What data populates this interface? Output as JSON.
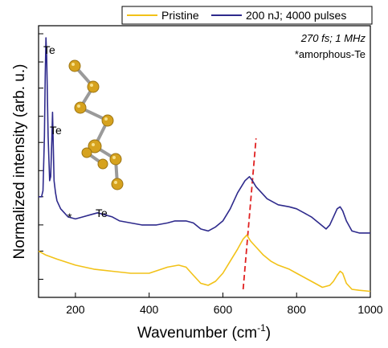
{
  "chart_data": {
    "type": "line",
    "xlabel": "Wavenumber (cm",
    "xlabel_sup": "-1",
    "xlabel_tail": ")",
    "ylabel": "Normalized intensity (arb. u.)",
    "xlim": [
      100,
      1000
    ],
    "ylim": [
      0,
      1.35
    ],
    "x_ticks": [
      200,
      400,
      600,
      800,
      1000
    ],
    "x_tick_labels": [
      "200",
      "400",
      "600",
      "800",
      "1000"
    ],
    "y_ticks": [
      0.09,
      0.23,
      0.36,
      0.5,
      0.63,
      0.77,
      0.9,
      1.04,
      1.17,
      1.31
    ],
    "y_tick_labels_shown": false,
    "legend_position": "top",
    "annotations": {
      "condition": "270 fs; 1 MHz",
      "footnote": "*amorphous-Te",
      "star": "*",
      "peak_label_1": "Te",
      "peak_label_2": "Te",
      "peak_label_3": "Te"
    },
    "guide_line": {
      "color": "#e02020",
      "style": "dashed",
      "x_start": 655,
      "y_start": 0.04,
      "x_end": 690,
      "y_end": 0.79
    },
    "series": [
      {
        "name": "Pristine",
        "color": "#f2c218",
        "x": [
          100,
          120,
          150,
          200,
          250,
          300,
          350,
          400,
          450,
          480,
          500,
          520,
          540,
          560,
          580,
          600,
          620,
          640,
          655,
          665,
          675,
          690,
          710,
          730,
          750,
          780,
          800,
          830,
          850,
          870,
          890,
          900,
          910,
          918,
          925,
          935,
          950,
          970,
          1000
        ],
        "y": [
          0.23,
          0.21,
          0.19,
          0.16,
          0.14,
          0.13,
          0.12,
          0.12,
          0.15,
          0.16,
          0.15,
          0.11,
          0.07,
          0.06,
          0.08,
          0.12,
          0.18,
          0.24,
          0.29,
          0.31,
          0.28,
          0.25,
          0.21,
          0.18,
          0.16,
          0.14,
          0.12,
          0.09,
          0.07,
          0.05,
          0.06,
          0.08,
          0.11,
          0.13,
          0.12,
          0.07,
          0.04,
          0.035,
          0.03
        ]
      },
      {
        "name": "200 nJ; 4000 pulses",
        "color": "#2e2a8c",
        "x": [
          100,
          108,
          112,
          116,
          118,
          120,
          122,
          126,
          130,
          133,
          136,
          138,
          140,
          142,
          146,
          150,
          160,
          170,
          180,
          200,
          220,
          240,
          260,
          280,
          300,
          320,
          350,
          380,
          400,
          420,
          450,
          470,
          500,
          520,
          540,
          560,
          580,
          600,
          620,
          640,
          660,
          672,
          680,
          690,
          700,
          720,
          750,
          780,
          800,
          820,
          840,
          860,
          880,
          890,
          900,
          910,
          918,
          925,
          935,
          950,
          970,
          1000
        ],
        "y": [
          0.5,
          0.5,
          0.53,
          0.8,
          1.1,
          1.29,
          1.2,
          0.8,
          0.58,
          0.6,
          0.78,
          0.92,
          0.74,
          0.58,
          0.52,
          0.48,
          0.44,
          0.42,
          0.4,
          0.39,
          0.4,
          0.41,
          0.42,
          0.41,
          0.4,
          0.38,
          0.37,
          0.36,
          0.36,
          0.36,
          0.37,
          0.38,
          0.38,
          0.37,
          0.34,
          0.33,
          0.35,
          0.38,
          0.44,
          0.52,
          0.58,
          0.6,
          0.58,
          0.55,
          0.53,
          0.49,
          0.46,
          0.45,
          0.44,
          0.42,
          0.4,
          0.37,
          0.34,
          0.36,
          0.4,
          0.44,
          0.45,
          0.43,
          0.38,
          0.33,
          0.32,
          0.32
        ]
      }
    ]
  }
}
